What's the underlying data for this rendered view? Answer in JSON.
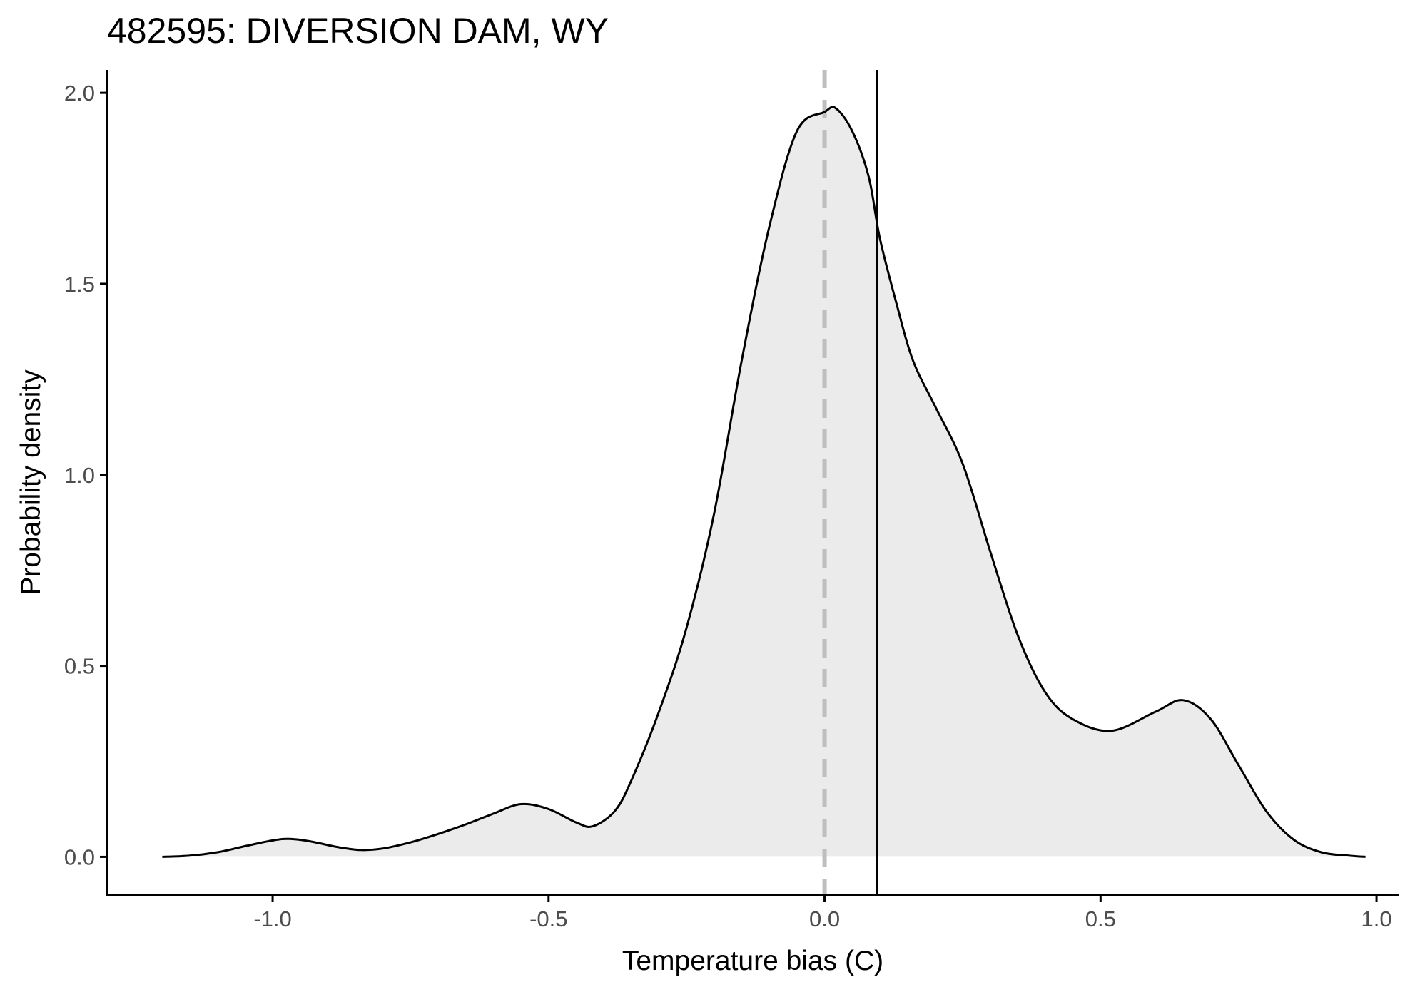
{
  "chart_data": {
    "type": "area",
    "title": "482595: DIVERSION DAM, WY",
    "xlabel": "Temperature bias (C)",
    "ylabel": "Probability density",
    "xlim": [
      -1.3,
      1.04
    ],
    "ylim": [
      -0.1,
      2.06
    ],
    "x_ticks": [
      {
        "value": -1.0,
        "label": "-1.0"
      },
      {
        "value": -0.5,
        "label": "-0.5"
      },
      {
        "value": 0.0,
        "label": "0.0"
      },
      {
        "value": 0.5,
        "label": "0.5"
      },
      {
        "value": 1.0,
        "label": "1.0"
      }
    ],
    "y_ticks": [
      {
        "value": 0.0,
        "label": "0.0"
      },
      {
        "value": 0.5,
        "label": "0.5"
      },
      {
        "value": 1.0,
        "label": "1.0"
      },
      {
        "value": 1.5,
        "label": "1.5"
      },
      {
        "value": 2.0,
        "label": "2.0"
      }
    ],
    "grid": false,
    "legend": "none",
    "series": [
      {
        "x": [
          -1.2,
          -1.15,
          -1.1,
          -1.05,
          -1.0,
          -0.97,
          -0.93,
          -0.88,
          -0.84,
          -0.8,
          -0.75,
          -0.7,
          -0.65,
          -0.6,
          -0.55,
          -0.5,
          -0.45,
          -0.42,
          -0.38,
          -0.35,
          -0.3,
          -0.25,
          -0.2,
          -0.15,
          -0.1,
          -0.05,
          0.0,
          0.02,
          0.05,
          0.08,
          0.1,
          0.13,
          0.16,
          0.2,
          0.25,
          0.3,
          0.35,
          0.4,
          0.45,
          0.52,
          0.6,
          0.65,
          0.7,
          0.75,
          0.8,
          0.85,
          0.9,
          0.95,
          0.98
        ],
        "y": [
          0.0,
          0.003,
          0.012,
          0.028,
          0.043,
          0.047,
          0.04,
          0.025,
          0.018,
          0.022,
          0.038,
          0.06,
          0.085,
          0.113,
          0.138,
          0.125,
          0.09,
          0.08,
          0.12,
          0.2,
          0.38,
          0.6,
          0.9,
          1.3,
          1.65,
          1.9,
          1.95,
          1.96,
          1.9,
          1.78,
          1.62,
          1.45,
          1.3,
          1.18,
          1.03,
          0.8,
          0.58,
          0.43,
          0.36,
          0.33,
          0.38,
          0.41,
          0.36,
          0.24,
          0.12,
          0.045,
          0.012,
          0.003,
          0.0
        ]
      }
    ],
    "reference_lines": [
      {
        "axis": "x",
        "value": 0.0,
        "style": "dashed",
        "color": "#bebebe"
      },
      {
        "axis": "x",
        "value": 0.095,
        "style": "solid",
        "color": "#000000"
      }
    ],
    "colors": {
      "fill": "#ebebeb",
      "line": "#000000",
      "axis": "#000000",
      "tick_label": "#4d4d4d"
    }
  }
}
